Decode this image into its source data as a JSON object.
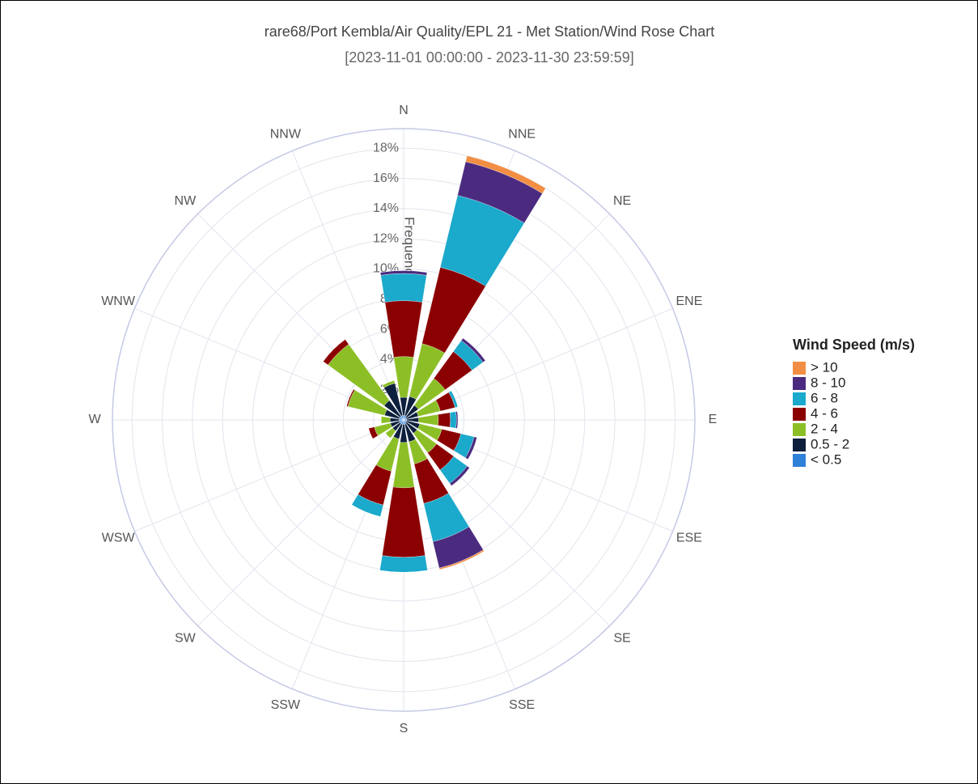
{
  "chart_data": {
    "type": "barpolar",
    "title": "rare68/Port Kembla/Air Quality/EPL 21 - Met Station/Wind Rose Chart",
    "subtitle": "[2023-11-01 00:00:00 - 2023-11-30 23:59:59]",
    "radial_axis_title": "Frequency",
    "legend_title": "Wind Speed (m/s)",
    "categories": [
      "N",
      "NNE",
      "NE",
      "ENE",
      "E",
      "ESE",
      "SE",
      "SSE",
      "S",
      "SSW",
      "SW",
      "WSW",
      "W",
      "WNW",
      "NW",
      "NNW"
    ],
    "series": [
      {
        "name": "> 10",
        "color": "#f28e43",
        "values": [
          0,
          0.4,
          0,
          0,
          0,
          0,
          0,
          0.1,
          0,
          0,
          0,
          0,
          0,
          0,
          0,
          0
        ]
      },
      {
        "name": "8 - 10",
        "color": "#4b2b7f",
        "values": [
          0.2,
          2.3,
          0.2,
          0,
          0.1,
          0.2,
          0.2,
          1.8,
          0,
          0,
          0,
          0,
          0,
          0,
          0,
          0
        ]
      },
      {
        "name": "6 - 8",
        "color": "#1ba9cc",
        "values": [
          1.8,
          4.9,
          0.9,
          0.2,
          0.4,
          0.9,
          1.1,
          2.6,
          1.0,
          0.8,
          0,
          0,
          0,
          0,
          0,
          0
        ]
      },
      {
        "name": "4 - 6",
        "color": "#8b0000",
        "values": [
          3.7,
          5.2,
          2.2,
          1.0,
          0.8,
          1.3,
          1.4,
          2.7,
          4.6,
          2.3,
          0,
          0.4,
          0,
          0.1,
          0.4,
          0
        ]
      },
      {
        "name": "2 - 4",
        "color": "#8cbf26",
        "values": [
          2.7,
          3.6,
          2.2,
          1.5,
          1.3,
          1.5,
          1.6,
          1.5,
          3.0,
          2.2,
          0.6,
          1.1,
          0.6,
          2.5,
          4.6,
          0.2
        ]
      },
      {
        "name": "0.5 - 2",
        "color": "#0d1f3c",
        "values": [
          1.2,
          1.3,
          1.0,
          0.8,
          0.8,
          0.9,
          0.9,
          1.2,
          1.2,
          1.0,
          0.6,
          0.6,
          0.6,
          1.0,
          1.3,
          2.2
        ]
      },
      {
        "name": "< 0.5",
        "color": "#2f80d8",
        "values": [
          0.3,
          0.3,
          0.2,
          0.2,
          0.2,
          0.2,
          0.2,
          0.3,
          0.3,
          0.3,
          0.3,
          0.3,
          0.3,
          0.3,
          0.3,
          0.3
        ]
      }
    ],
    "rlim": [
      0,
      19.3
    ],
    "rticks": [
      {
        "value": 2,
        "label": "2%"
      },
      {
        "value": 4,
        "label": "4%"
      },
      {
        "value": 6,
        "label": "6%"
      },
      {
        "value": 8,
        "label": "8%"
      },
      {
        "value": 10,
        "label": "10%"
      },
      {
        "value": 12,
        "label": "12%"
      },
      {
        "value": 14,
        "label": "14%"
      },
      {
        "value": 16,
        "label": "16%"
      },
      {
        "value": 18,
        "label": "18%"
      }
    ],
    "grid": true
  }
}
